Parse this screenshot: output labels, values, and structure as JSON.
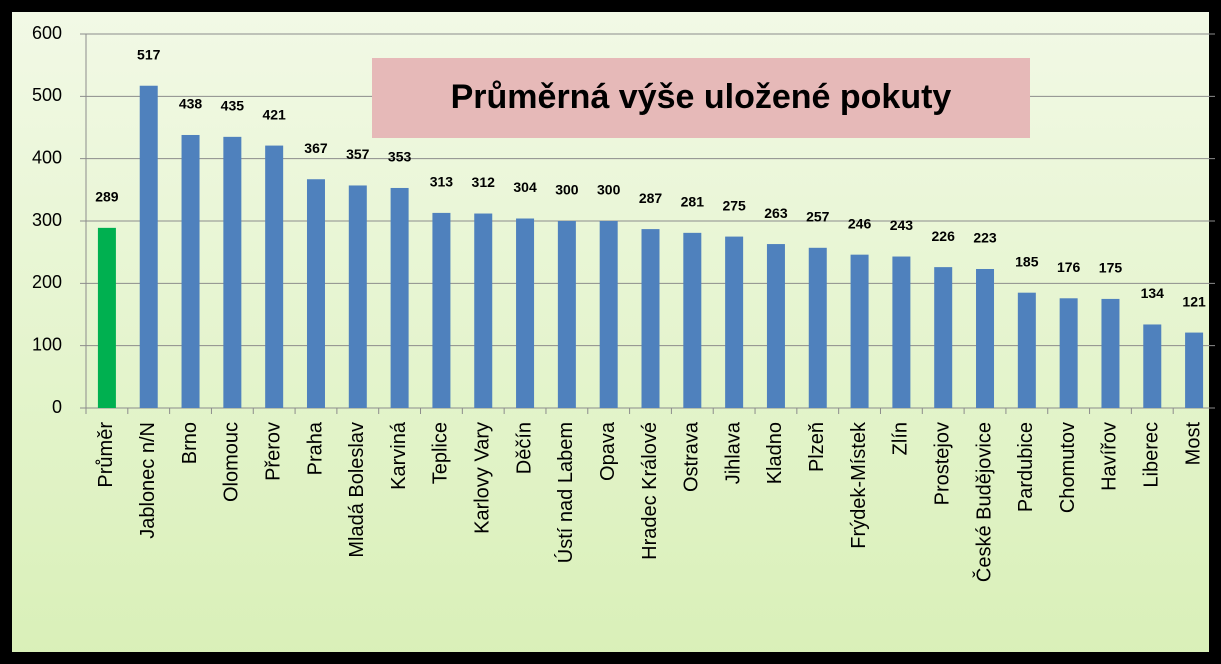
{
  "chart_data": {
    "type": "bar",
    "title": "Průměrná výše uložené pokuty",
    "categories": [
      "Průměr",
      "Jablonec n/N",
      "Brno",
      "Olomouc",
      "Přerov",
      "Praha",
      "Mladá Boleslav",
      "Karviná",
      "Teplice",
      "Karlovy Vary",
      "Děčín",
      "Ústí nad Labem",
      "Opava",
      "Hradec Králové",
      "Ostrava",
      "Jihlava",
      "Kladno",
      "Plzeň",
      "Frýdek-Místek",
      "Zlín",
      "Prostejov",
      "České Budějovice",
      "Pardubice",
      "Chomutov",
      "Havířov",
      "Liberec",
      "Most"
    ],
    "values": [
      289,
      517,
      438,
      435,
      421,
      367,
      357,
      353,
      313,
      312,
      304,
      300,
      300,
      287,
      281,
      275,
      263,
      257,
      246,
      243,
      226,
      223,
      185,
      176,
      175,
      134,
      121
    ],
    "colors": [
      "#00b050",
      "#4f81bd",
      "#4f81bd",
      "#4f81bd",
      "#4f81bd",
      "#4f81bd",
      "#4f81bd",
      "#4f81bd",
      "#4f81bd",
      "#4f81bd",
      "#4f81bd",
      "#4f81bd",
      "#4f81bd",
      "#4f81bd",
      "#4f81bd",
      "#4f81bd",
      "#4f81bd",
      "#4f81bd",
      "#4f81bd",
      "#4f81bd",
      "#4f81bd",
      "#4f81bd",
      "#4f81bd",
      "#4f81bd",
      "#4f81bd",
      "#4f81bd",
      "#4f81bd"
    ],
    "ylim": [
      0,
      600
    ],
    "yticks": [
      0,
      100,
      200,
      300,
      400,
      500,
      600
    ],
    "grid": true
  }
}
